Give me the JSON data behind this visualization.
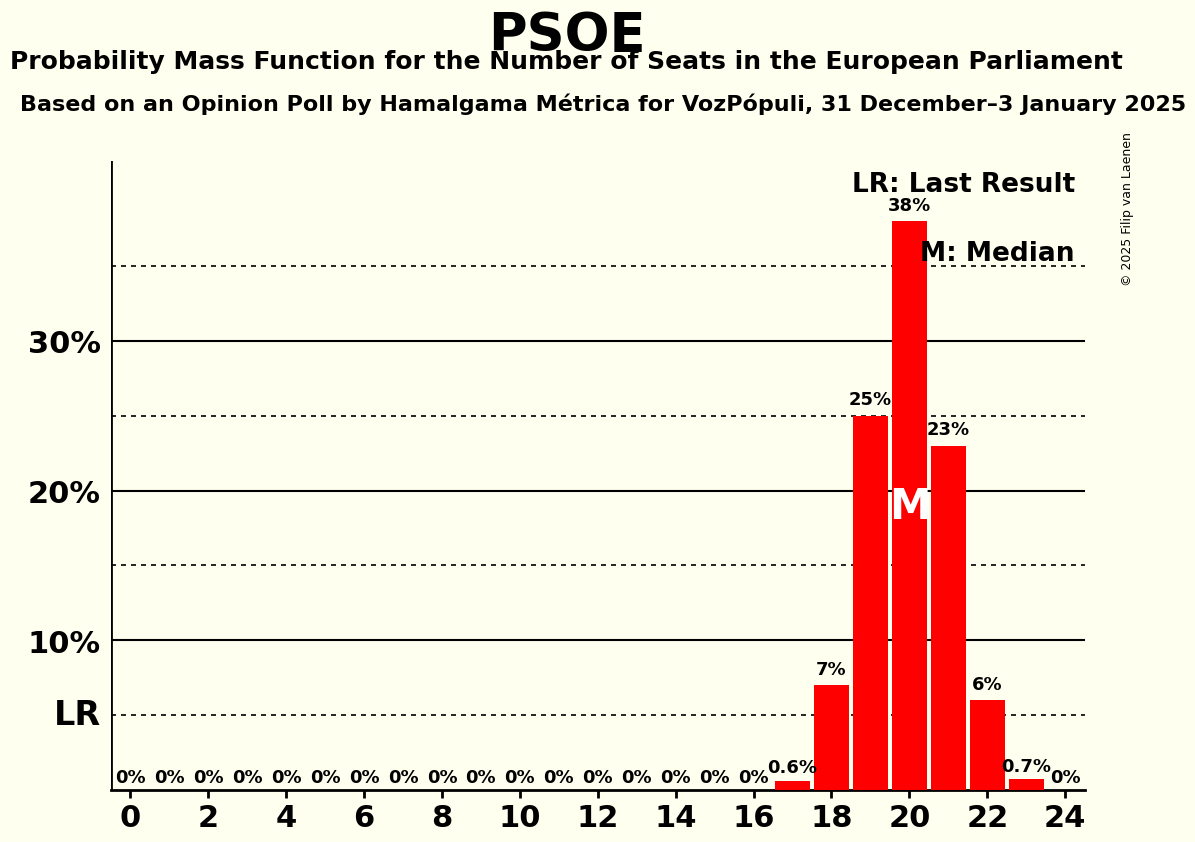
{
  "title": "PSOE",
  "subtitle": "Probability Mass Function for the Number of Seats in the European Parliament",
  "source_line": "Based on an Opinion Poll by Hamalgama Métrica for VozPópuli, 31 December–3 January 2025",
  "copyright": "© 2025 Filip van Laenen",
  "background_color": "#FFFFF0",
  "bar_color": "#FF0000",
  "seats": [
    0,
    1,
    2,
    3,
    4,
    5,
    6,
    7,
    8,
    9,
    10,
    11,
    12,
    13,
    14,
    15,
    16,
    17,
    18,
    19,
    20,
    21,
    22,
    23,
    24
  ],
  "probabilities": [
    0.0,
    0.0,
    0.0,
    0.0,
    0.0,
    0.0,
    0.0,
    0.0,
    0.0,
    0.0,
    0.0,
    0.0,
    0.0,
    0.0,
    0.0,
    0.0,
    0.0,
    0.6,
    7.0,
    25.0,
    38.0,
    23.0,
    6.0,
    0.7,
    0.0
  ],
  "labels": [
    "0%",
    "0%",
    "0%",
    "0%",
    "0%",
    "0%",
    "0%",
    "0%",
    "0%",
    "0%",
    "0%",
    "0%",
    "0%",
    "0%",
    "0%",
    "0%",
    "0%",
    "0.6%",
    "7%",
    "25%",
    "38%",
    "23%",
    "6%",
    "0.7%",
    "0%"
  ],
  "last_result_seat": 20,
  "median_seat": 20,
  "lr_line_value": 5.0,
  "ylim": [
    0,
    42
  ],
  "dotted_lines": [
    5.0,
    15.0,
    25.0,
    35.0
  ],
  "solid_lines": [
    10.0,
    20.0,
    30.0
  ],
  "xlim": [
    -0.5,
    24.5
  ],
  "xticks": [
    0,
    2,
    4,
    6,
    8,
    10,
    12,
    14,
    16,
    18,
    20,
    22,
    24
  ],
  "legend_text_lr": "LR: Last Result",
  "legend_text_m": "M: Median",
  "lr_label": "LR",
  "m_label": "M"
}
